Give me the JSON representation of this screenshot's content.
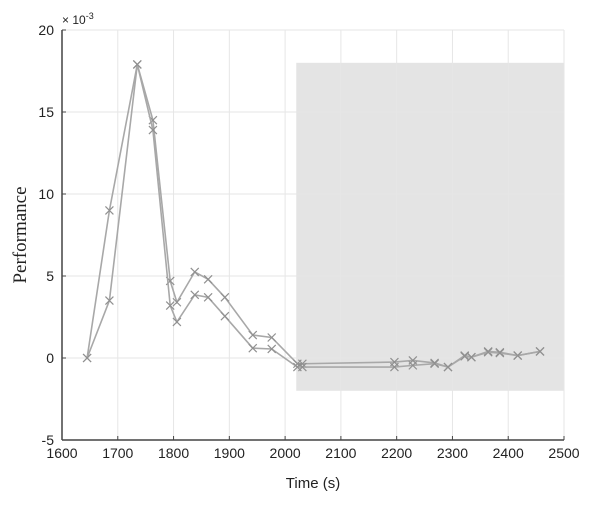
{
  "chart_data": {
    "type": "line",
    "xlabel": "Time (s)",
    "ylabel": "Performance",
    "y_multiplier": "× 10",
    "y_multiplier_exp": "-3",
    "xlim": [
      1600,
      2500
    ],
    "ylim": [
      -5,
      20
    ],
    "xticks": [
      1600,
      1700,
      1800,
      1900,
      2000,
      2100,
      2200,
      2300,
      2400,
      2500
    ],
    "yticks": [
      -5,
      0,
      5,
      10,
      15,
      20
    ],
    "grid": true,
    "marker": "x",
    "colors": {
      "line": "#a8a8a8",
      "marker": "#909090",
      "shade": "#e4e4e4",
      "grid": "#e6e6e6"
    },
    "shaded_region": {
      "x": [
        2020,
        2500
      ],
      "y": [
        -2,
        18
      ]
    },
    "series": [
      {
        "x": [
          1645,
          1685,
          1735,
          1763,
          1794,
          1806,
          1838,
          1862,
          1892,
          1942,
          1976,
          2022,
          2031,
          2196,
          2229,
          2268,
          2292,
          2322,
          2334,
          2364,
          2385,
          2417,
          2457
        ],
        "y": [
          0,
          9.0,
          17.9,
          14.5,
          4.7,
          3.4,
          5.25,
          4.8,
          3.7,
          1.4,
          1.25,
          -0.35,
          -0.35,
          -0.25,
          -0.15,
          -0.3,
          -0.55,
          0.15,
          0.05,
          0.4,
          0.35,
          0.15,
          0.4
        ]
      },
      {
        "x": [
          1645,
          1685,
          1735,
          1763,
          1794,
          1806,
          1838,
          1862,
          1892,
          1942,
          1976,
          2022,
          2031,
          2196,
          2229,
          2268,
          2292,
          2322,
          2334,
          2364,
          2385,
          2417,
          2457
        ],
        "y": [
          0,
          3.5,
          17.9,
          13.9,
          3.2,
          2.2,
          3.85,
          3.7,
          2.55,
          0.6,
          0.55,
          -0.55,
          -0.55,
          -0.55,
          -0.45,
          -0.35,
          -0.55,
          0.1,
          0.05,
          0.35,
          0.3,
          0.15,
          0.4
        ]
      }
    ]
  }
}
